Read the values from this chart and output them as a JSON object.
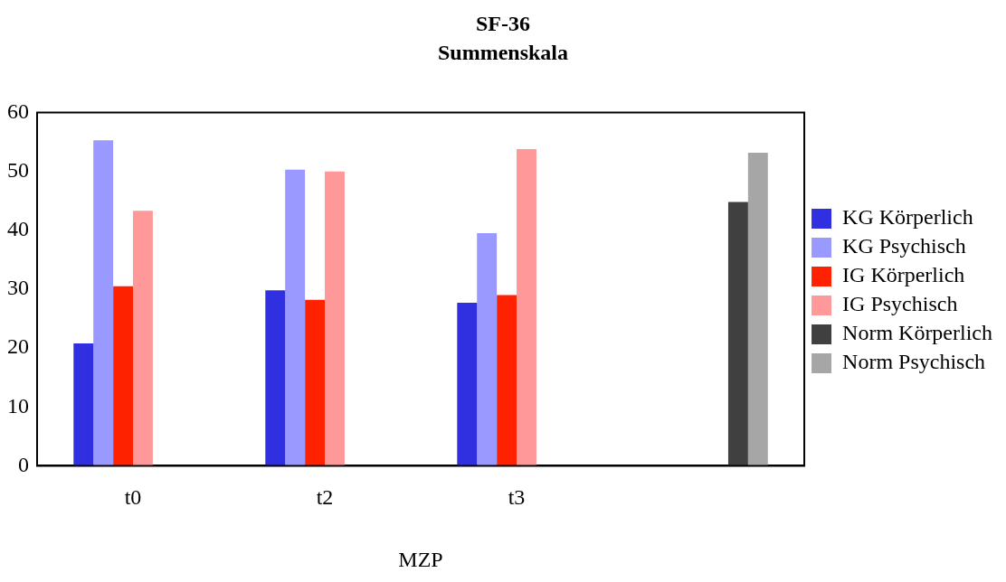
{
  "chart_data": {
    "type": "bar",
    "title": "SF-36",
    "subtitle": "Summenskala",
    "xlabel": "MZP",
    "categories": [
      "t0",
      "t2",
      "t3",
      null
    ],
    "series": [
      {
        "name": "KG Körperlich",
        "color": "#3030e0",
        "values": [
          20.8,
          29.8,
          27.7,
          null
        ]
      },
      {
        "name": "KG Psychisch",
        "color": "#9999ff",
        "values": [
          55.3,
          50.3,
          39.5,
          null
        ]
      },
      {
        "name": "IG Körperlich",
        "color": "#ff2200",
        "values": [
          30.5,
          28.2,
          29.0,
          null
        ]
      },
      {
        "name": "IG Psychisch",
        "color": "#ff9999",
        "values": [
          43.3,
          50.0,
          53.8,
          null
        ]
      },
      {
        "name": "Norm Körperlich",
        "color": "#404040",
        "values": [
          null,
          null,
          null,
          44.8
        ]
      },
      {
        "name": "Norm Psychisch",
        "color": "#a6a6a6",
        "values": [
          null,
          null,
          null,
          53.2
        ]
      }
    ],
    "ylim": [
      0,
      60
    ],
    "yticks": [
      0,
      10,
      20,
      30,
      40,
      50,
      60
    ],
    "grid": false,
    "legend": "right"
  }
}
